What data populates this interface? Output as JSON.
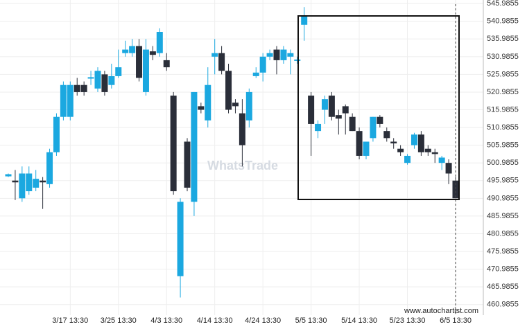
{
  "chart_data": {
    "type": "candlestick",
    "watermark": "WhatsTrade",
    "source": "www.autochartist.com",
    "categories": [
      null,
      null,
      null,
      null,
      null,
      null,
      null,
      null,
      null,
      "3/17 13:30",
      null,
      null,
      null,
      null,
      null,
      null,
      "3/25 13:30",
      null,
      null,
      null,
      null,
      null,
      null,
      "4/3 13:30",
      null,
      null,
      null,
      null,
      null,
      null,
      "4/14 13:30",
      null,
      null,
      null,
      null,
      null,
      null,
      "4/24 13:30",
      null,
      null,
      null,
      null,
      null,
      null,
      "5/5 13:30",
      null,
      null,
      null,
      null,
      null,
      null,
      "5/14 13:30",
      null,
      null,
      null,
      null,
      null,
      null,
      "5/23 13:30",
      null,
      null,
      null,
      null,
      null,
      null,
      "6/5 13:30"
    ],
    "open": [
      497.2,
      496,
      491,
      493,
      494,
      496,
      495,
      504,
      514,
      514,
      523,
      523,
      524.8,
      522,
      526,
      523,
      525.5,
      532,
      532,
      534,
      521,
      532.5,
      532,
      530,
      520,
      469,
      507,
      490,
      517,
      513,
      531,
      532,
      527,
      518,
      515,
      513,
      525.5,
      526.5,
      531,
      533,
      530,
      531,
      529.8,
      540,
      520,
      510,
      516,
      520,
      514.5,
      517,
      514,
      510,
      503,
      508,
      514,
      510,
      507,
      505,
      501,
      506,
      509,
      505,
      504,
      501,
      501,
      496
    ],
    "high": [
      498,
      499,
      500,
      500,
      499,
      497,
      505,
      515,
      524,
      524,
      525,
      524,
      527,
      528,
      527,
      529,
      533,
      535.5,
      536,
      536,
      536,
      534,
      539,
      532,
      521,
      491,
      508,
      521,
      518,
      528,
      536,
      534,
      529,
      519,
      519,
      522,
      528,
      532,
      533,
      534,
      534,
      533,
      531,
      545,
      521,
      513,
      520,
      521,
      516,
      517.5,
      515,
      511,
      507,
      514,
      514.5,
      511,
      508,
      506,
      503.5,
      509.5,
      510,
      506,
      505,
      503,
      502,
      497
    ],
    "low": [
      497,
      490.5,
      490,
      492,
      493,
      488,
      494,
      503,
      513,
      513,
      520,
      520,
      523,
      521,
      520,
      522,
      525,
      531,
      531,
      524,
      520,
      530,
      531,
      527,
      492,
      463,
      493,
      486,
      515,
      511,
      526,
      526,
      515,
      515,
      500,
      511,
      525,
      524,
      530,
      526,
      529,
      526,
      529,
      535.5,
      503,
      508,
      512,
      513,
      509,
      509,
      510,
      502,
      502,
      507,
      511,
      507,
      505,
      503,
      500.5,
      505,
      503,
      503,
      501,
      499,
      495,
      491
    ],
    "close": [
      497.8,
      495.5,
      498,
      498,
      496.5,
      495.5,
      504,
      514,
      523,
      523,
      521,
      521,
      525.2,
      527,
      521,
      525.5,
      528,
      533,
      534,
      525,
      533,
      531.5,
      538,
      528,
      493,
      490,
      494,
      521,
      516,
      523,
      532,
      527,
      516,
      517,
      506,
      521,
      526.5,
      531,
      532,
      530,
      533,
      532,
      530.2,
      542.5,
      512,
      512,
      519,
      514,
      513.5,
      515,
      510,
      503,
      507,
      514,
      512,
      508,
      506.5,
      504,
      503,
      509,
      504,
      504,
      503.5,
      502.5,
      498,
      491
    ],
    "up_color": "#1ba8e0",
    "down_color": "#2a2e39",
    "ylim": [
      458.0,
      547.0
    ],
    "yticks": [
      460.9855,
      465.9855,
      470.9855,
      475.9855,
      480.9855,
      485.9855,
      490.9855,
      495.9855,
      500.9855,
      505.9855,
      510.9855,
      515.9855,
      520.9855,
      525.9855,
      530.9855,
      535.9855,
      540.9855,
      545.9855
    ],
    "grid": true
  }
}
